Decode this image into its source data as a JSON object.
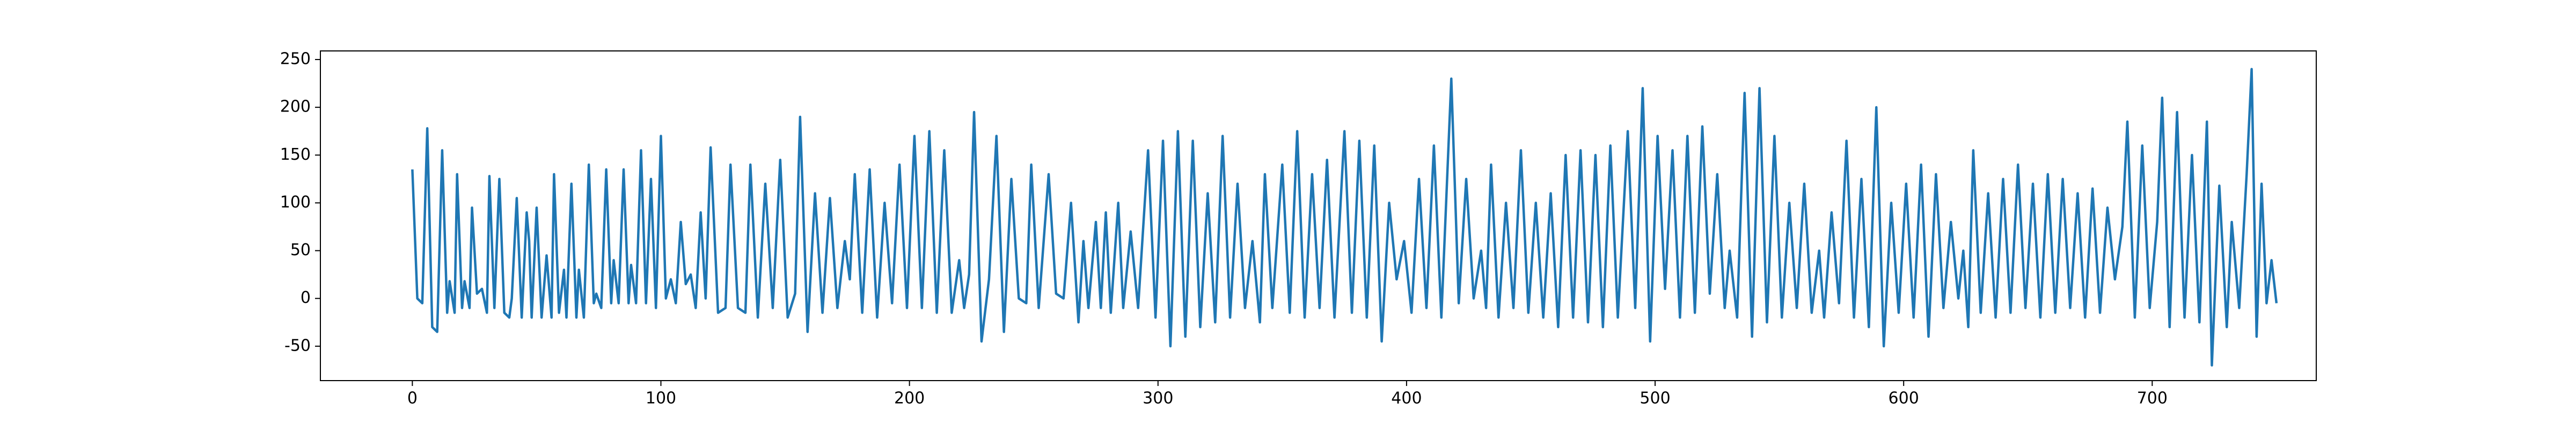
{
  "chart_data": {
    "type": "line",
    "x": [
      0,
      2,
      4,
      6,
      8,
      10,
      12,
      14,
      15,
      17,
      18,
      20,
      21,
      23,
      24,
      26,
      28,
      30,
      31,
      33,
      35,
      37,
      39,
      40,
      42,
      44,
      46,
      47,
      48,
      50,
      52,
      54,
      56,
      57,
      59,
      61,
      62,
      64,
      66,
      67,
      69,
      71,
      73,
      74,
      76,
      78,
      80,
      81,
      83,
      85,
      87,
      88,
      90,
      92,
      94,
      96,
      98,
      100,
      102,
      104,
      106,
      108,
      110,
      112,
      114,
      116,
      118,
      120,
      123,
      126,
      128,
      131,
      134,
      136,
      139,
      142,
      145,
      148,
      151,
      154,
      156,
      159,
      162,
      165,
      168,
      171,
      174,
      176,
      178,
      181,
      184,
      187,
      190,
      193,
      196,
      199,
      202,
      205,
      208,
      211,
      214,
      217,
      220,
      222,
      224,
      226,
      229,
      232,
      235,
      238,
      241,
      244,
      247,
      249,
      252,
      256,
      259,
      262,
      265,
      268,
      270,
      272,
      275,
      277,
      279,
      281,
      284,
      286,
      289,
      292,
      296,
      299,
      302,
      305,
      308,
      311,
      314,
      317,
      320,
      323,
      326,
      329,
      332,
      335,
      338,
      341,
      343,
      346,
      350,
      353,
      356,
      359,
      362,
      365,
      368,
      371,
      375,
      378,
      381,
      384,
      387,
      390,
      393,
      396,
      399,
      402,
      405,
      408,
      411,
      414,
      418,
      421,
      424,
      427,
      430,
      432,
      434,
      437,
      440,
      443,
      446,
      449,
      452,
      455,
      458,
      461,
      464,
      467,
      470,
      473,
      476,
      479,
      482,
      485,
      489,
      492,
      495,
      498,
      501,
      504,
      507,
      510,
      513,
      516,
      519,
      522,
      525,
      528,
      530,
      533,
      536,
      539,
      542,
      545,
      548,
      551,
      554,
      557,
      560,
      563,
      566,
      568,
      571,
      574,
      577,
      580,
      583,
      586,
      589,
      592,
      595,
      598,
      601,
      604,
      607,
      610,
      613,
      616,
      619,
      622,
      624,
      626,
      628,
      631,
      634,
      637,
      640,
      643,
      646,
      649,
      652,
      655,
      658,
      661,
      664,
      667,
      670,
      673,
      676,
      679,
      682,
      685,
      688,
      690,
      693,
      696,
      699,
      702,
      704,
      707,
      710,
      713,
      716,
      719,
      722,
      724,
      727,
      730,
      732,
      735,
      738,
      740,
      742,
      744,
      746,
      748,
      750
    ],
    "series": [
      {
        "color": "#1f77b4",
        "values": [
          135,
          0,
          -5,
          178,
          -30,
          -35,
          155,
          -15,
          18,
          -15,
          130,
          -10,
          18,
          -10,
          95,
          5,
          10,
          -15,
          128,
          -10,
          125,
          -15,
          -20,
          0,
          105,
          -20,
          90,
          60,
          -20,
          95,
          -20,
          45,
          -20,
          130,
          -15,
          30,
          -20,
          120,
          -20,
          30,
          -20,
          140,
          -5,
          5,
          -10,
          135,
          -5,
          40,
          -5,
          135,
          -5,
          35,
          -5,
          155,
          -5,
          125,
          -10,
          170,
          0,
          20,
          -5,
          80,
          15,
          25,
          -10,
          90,
          0,
          158,
          -15,
          -10,
          140,
          -10,
          -15,
          140,
          -20,
          120,
          -10,
          145,
          -20,
          5,
          190,
          -35,
          110,
          -15,
          105,
          -10,
          60,
          20,
          130,
          -15,
          135,
          -20,
          100,
          -5,
          140,
          -10,
          170,
          -10,
          175,
          -15,
          155,
          -15,
          40,
          -10,
          25,
          195,
          -45,
          20,
          170,
          -35,
          125,
          0,
          -5,
          140,
          -10,
          130,
          5,
          0,
          100,
          -25,
          60,
          -10,
          80,
          -10,
          90,
          -15,
          100,
          -10,
          70,
          -10,
          155,
          -20,
          165,
          -50,
          175,
          -40,
          165,
          -30,
          110,
          -25,
          170,
          -20,
          120,
          -10,
          60,
          -25,
          130,
          -10,
          140,
          -15,
          175,
          -20,
          130,
          -10,
          145,
          -20,
          175,
          -15,
          165,
          -20,
          160,
          -45,
          100,
          20,
          60,
          -15,
          125,
          -10,
          160,
          -20,
          230,
          -5,
          125,
          0,
          50,
          -10,
          140,
          -20,
          100,
          -10,
          155,
          -15,
          100,
          -20,
          110,
          -30,
          150,
          -20,
          155,
          -25,
          150,
          -30,
          160,
          -20,
          175,
          -10,
          220,
          -45,
          170,
          10,
          155,
          -20,
          170,
          -15,
          180,
          5,
          130,
          -10,
          50,
          -20,
          215,
          -40,
          220,
          -25,
          170,
          -20,
          100,
          -10,
          120,
          -15,
          50,
          -20,
          90,
          -5,
          165,
          -20,
          125,
          -30,
          200,
          -50,
          100,
          -15,
          120,
          -20,
          140,
          -40,
          130,
          -10,
          80,
          0,
          50,
          -30,
          155,
          -15,
          110,
          -20,
          125,
          -15,
          140,
          -10,
          120,
          -20,
          130,
          -15,
          125,
          -10,
          110,
          -20,
          115,
          -15,
          95,
          20,
          75,
          185,
          -20,
          160,
          -10,
          80,
          210,
          -30,
          195,
          -20,
          150,
          -25,
          185,
          -70,
          118,
          -30,
          80,
          -10,
          130,
          240,
          -40,
          120,
          -5,
          40,
          -5
        ]
      }
    ],
    "xlim": [
      -37,
      766
    ],
    "ylim": [
      -86,
      259
    ],
    "xticks": [
      0,
      100,
      200,
      300,
      400,
      500,
      600,
      700
    ],
    "yticks": [
      -50,
      0,
      50,
      100,
      150,
      200,
      250
    ]
  }
}
